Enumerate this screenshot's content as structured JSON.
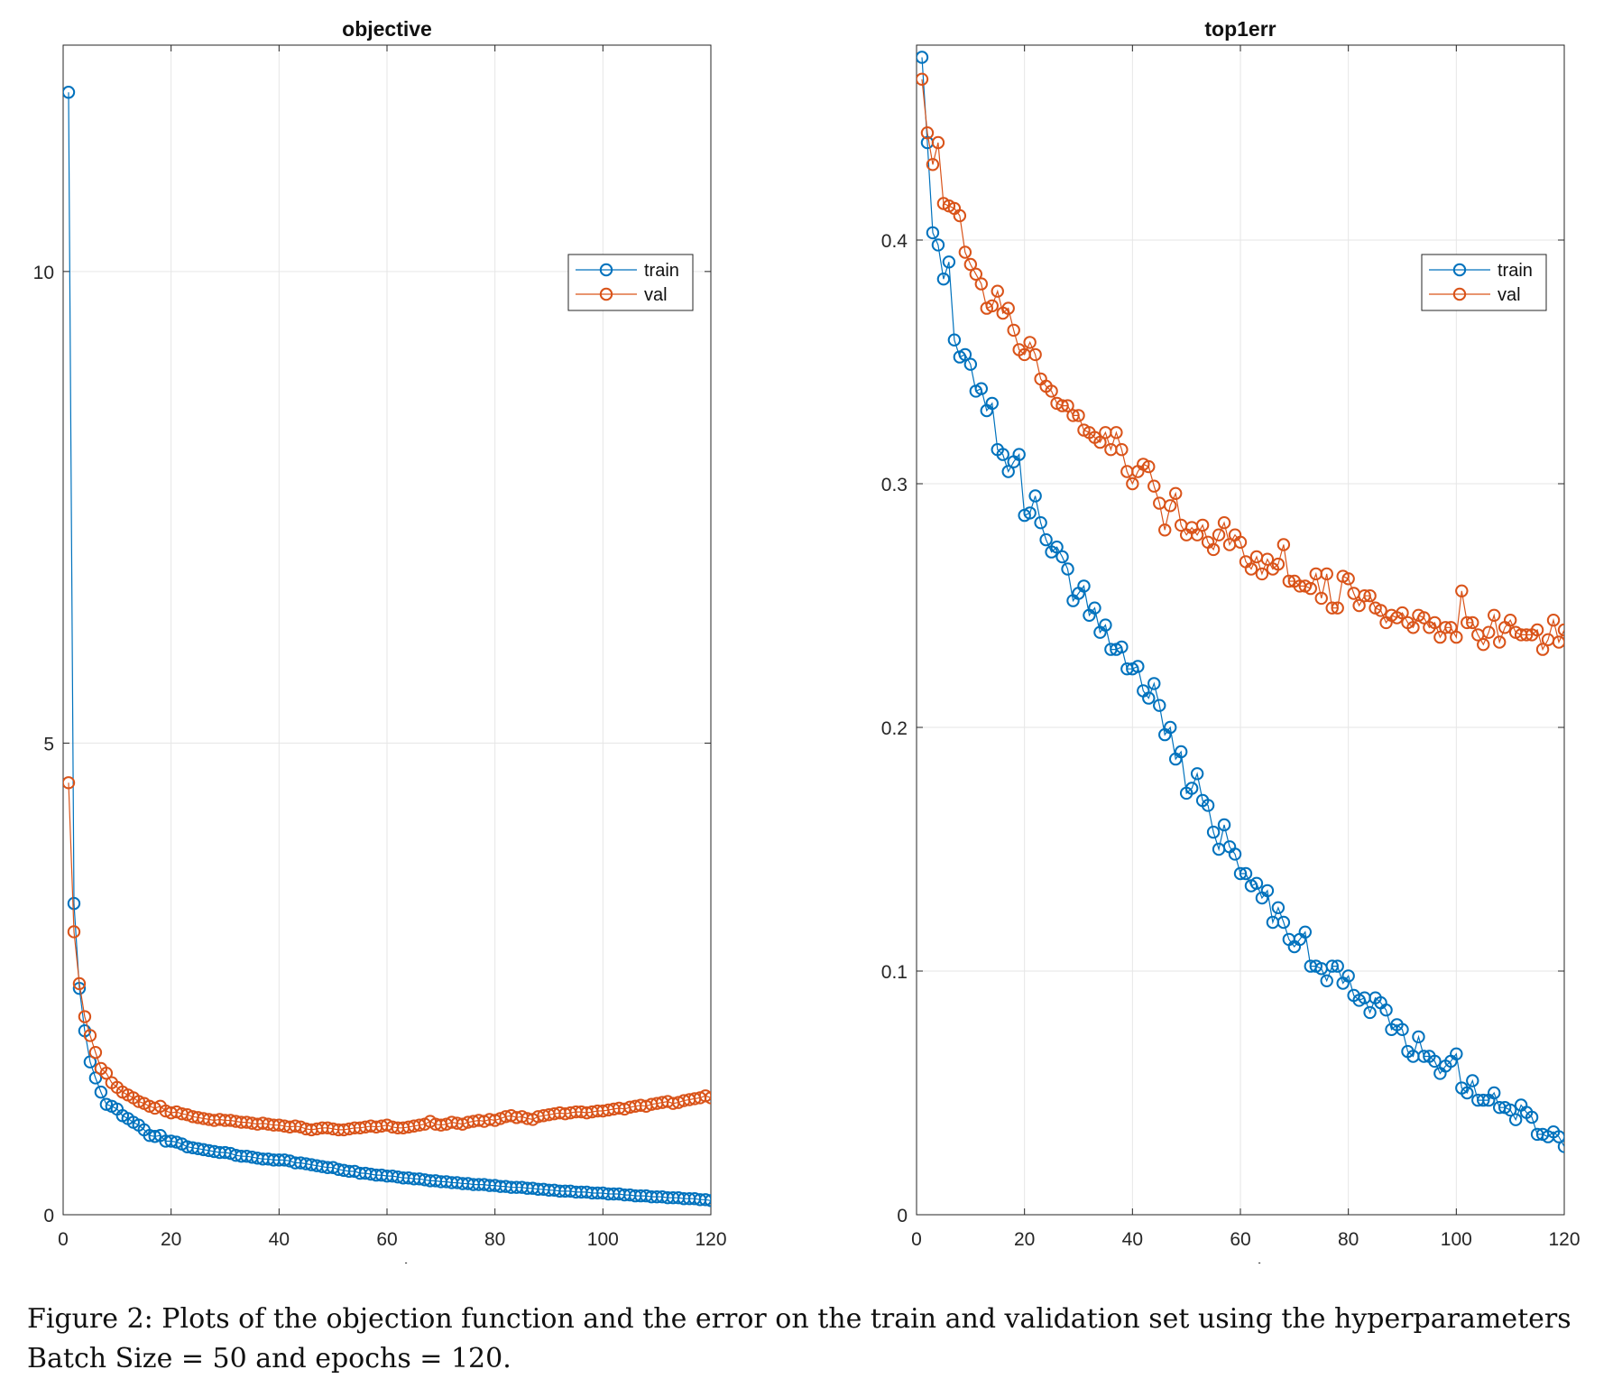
{
  "colors": {
    "train": "#0072BD",
    "val": "#D95319",
    "grid": "#e6e6e6",
    "axis": "#262626"
  },
  "caption": {
    "line1": "Figure 2:  Plots of the objection function and the error on the train and validation set using the hyperparameters",
    "line2": "Batch Size = 50 and epochs = 120."
  },
  "chart_data": [
    {
      "type": "line",
      "title": "objective",
      "xlabel": "epoch",
      "ylabel": "",
      "xlim": [
        0,
        120
      ],
      "ylim": [
        0,
        12.4
      ],
      "xticks": [
        0,
        20,
        40,
        60,
        80,
        100,
        120
      ],
      "xtick_labels": [
        "0",
        "20",
        "40",
        "60",
        "80",
        "100",
        "120"
      ],
      "yticks": [
        0,
        5,
        10
      ],
      "ytick_labels": [
        "0",
        "5",
        "10"
      ],
      "grid": true,
      "marker": "circle",
      "legend_position": "top-right",
      "legend_labels": [
        "train",
        "val"
      ],
      "series": [
        {
          "name": "train",
          "x": [
            1,
            2,
            3,
            4,
            5,
            6,
            7,
            8,
            9,
            10,
            11,
            12,
            13,
            14,
            15,
            16,
            17,
            18,
            19,
            20,
            21,
            22,
            23,
            24,
            25,
            26,
            27,
            28,
            29,
            30,
            31,
            32,
            33,
            34,
            35,
            36,
            37,
            38,
            39,
            40,
            41,
            42,
            43,
            44,
            45,
            46,
            47,
            48,
            49,
            50,
            51,
            52,
            53,
            54,
            55,
            56,
            57,
            58,
            59,
            60,
            61,
            62,
            63,
            64,
            65,
            66,
            67,
            68,
            69,
            70,
            71,
            72,
            73,
            74,
            75,
            76,
            77,
            78,
            79,
            80,
            81,
            82,
            83,
            84,
            85,
            86,
            87,
            88,
            89,
            90,
            91,
            92,
            93,
            94,
            95,
            96,
            97,
            98,
            99,
            100,
            101,
            102,
            103,
            104,
            105,
            106,
            107,
            108,
            109,
            110,
            111,
            112,
            113,
            114,
            115,
            116,
            117,
            118,
            119,
            120
          ],
          "values": [
            11.9,
            3.3,
            2.4,
            1.95,
            1.62,
            1.45,
            1.3,
            1.17,
            1.15,
            1.12,
            1.05,
            1.02,
            0.98,
            0.95,
            0.9,
            0.84,
            0.83,
            0.84,
            0.78,
            0.78,
            0.77,
            0.75,
            0.72,
            0.71,
            0.7,
            0.69,
            0.68,
            0.67,
            0.66,
            0.66,
            0.65,
            0.63,
            0.62,
            0.62,
            0.61,
            0.6,
            0.59,
            0.59,
            0.58,
            0.58,
            0.58,
            0.57,
            0.55,
            0.55,
            0.54,
            0.53,
            0.52,
            0.51,
            0.5,
            0.5,
            0.48,
            0.47,
            0.46,
            0.46,
            0.44,
            0.44,
            0.43,
            0.42,
            0.42,
            0.41,
            0.41,
            0.4,
            0.39,
            0.39,
            0.38,
            0.38,
            0.37,
            0.36,
            0.36,
            0.35,
            0.35,
            0.34,
            0.34,
            0.33,
            0.33,
            0.32,
            0.32,
            0.32,
            0.31,
            0.31,
            0.3,
            0.3,
            0.29,
            0.29,
            0.29,
            0.28,
            0.28,
            0.27,
            0.27,
            0.26,
            0.26,
            0.25,
            0.25,
            0.25,
            0.24,
            0.24,
            0.24,
            0.23,
            0.23,
            0.23,
            0.22,
            0.22,
            0.22,
            0.21,
            0.21,
            0.2,
            0.2,
            0.2,
            0.19,
            0.19,
            0.19,
            0.18,
            0.18,
            0.18,
            0.17,
            0.17,
            0.17,
            0.16,
            0.16,
            0.15
          ]
        },
        {
          "name": "val",
          "x": [
            1,
            2,
            3,
            4,
            5,
            6,
            7,
            8,
            9,
            10,
            11,
            12,
            13,
            14,
            15,
            16,
            17,
            18,
            19,
            20,
            21,
            22,
            23,
            24,
            25,
            26,
            27,
            28,
            29,
            30,
            31,
            32,
            33,
            34,
            35,
            36,
            37,
            38,
            39,
            40,
            41,
            42,
            43,
            44,
            45,
            46,
            47,
            48,
            49,
            50,
            51,
            52,
            53,
            54,
            55,
            56,
            57,
            58,
            59,
            60,
            61,
            62,
            63,
            64,
            65,
            66,
            67,
            68,
            69,
            70,
            71,
            72,
            73,
            74,
            75,
            76,
            77,
            78,
            79,
            80,
            81,
            82,
            83,
            84,
            85,
            86,
            87,
            88,
            89,
            90,
            91,
            92,
            93,
            94,
            95,
            96,
            97,
            98,
            99,
            100,
            101,
            102,
            103,
            104,
            105,
            106,
            107,
            108,
            109,
            110,
            111,
            112,
            113,
            114,
            115,
            116,
            117,
            118,
            119,
            120
          ],
          "values": [
            4.58,
            3.0,
            2.45,
            2.1,
            1.9,
            1.72,
            1.55,
            1.5,
            1.4,
            1.35,
            1.3,
            1.27,
            1.24,
            1.2,
            1.18,
            1.15,
            1.13,
            1.15,
            1.1,
            1.08,
            1.09,
            1.07,
            1.06,
            1.04,
            1.03,
            1.02,
            1.01,
            1.0,
            1.01,
            1.0,
            1.0,
            0.99,
            0.98,
            0.98,
            0.97,
            0.96,
            0.97,
            0.96,
            0.95,
            0.95,
            0.94,
            0.93,
            0.94,
            0.93,
            0.91,
            0.9,
            0.91,
            0.92,
            0.92,
            0.91,
            0.9,
            0.9,
            0.91,
            0.92,
            0.92,
            0.93,
            0.94,
            0.93,
            0.94,
            0.95,
            0.93,
            0.92,
            0.92,
            0.93,
            0.94,
            0.95,
            0.96,
            0.99,
            0.96,
            0.95,
            0.96,
            0.98,
            0.97,
            0.96,
            0.98,
            0.99,
            1.0,
            0.99,
            1.01,
            1.0,
            1.02,
            1.04,
            1.05,
            1.03,
            1.04,
            1.02,
            1.01,
            1.04,
            1.05,
            1.06,
            1.07,
            1.08,
            1.07,
            1.08,
            1.09,
            1.09,
            1.08,
            1.09,
            1.1,
            1.1,
            1.11,
            1.12,
            1.13,
            1.12,
            1.14,
            1.15,
            1.16,
            1.15,
            1.17,
            1.18,
            1.19,
            1.2,
            1.18,
            1.19,
            1.21,
            1.22,
            1.23,
            1.24,
            1.26,
            1.24
          ]
        }
      ]
    },
    {
      "type": "line",
      "title": "top1err",
      "xlabel": "epoch",
      "ylabel": "",
      "xlim": [
        0,
        120
      ],
      "ylim": [
        0,
        0.48
      ],
      "xticks": [
        0,
        20,
        40,
        60,
        80,
        100,
        120
      ],
      "xtick_labels": [
        "0",
        "20",
        "40",
        "60",
        "80",
        "100",
        "120"
      ],
      "yticks": [
        0,
        0.1,
        0.2,
        0.3,
        0.4
      ],
      "ytick_labels": [
        "0",
        "0.1",
        "0.2",
        "0.3",
        "0.4"
      ],
      "grid": true,
      "marker": "circle",
      "legend_position": "top-right",
      "legend_labels": [
        "train",
        "val"
      ],
      "series": [
        {
          "name": "train",
          "x": [
            1,
            2,
            3,
            4,
            5,
            6,
            7,
            8,
            9,
            10,
            11,
            12,
            13,
            14,
            15,
            16,
            17,
            18,
            19,
            20,
            21,
            22,
            23,
            24,
            25,
            26,
            27,
            28,
            29,
            30,
            31,
            32,
            33,
            34,
            35,
            36,
            37,
            38,
            39,
            40,
            41,
            42,
            43,
            44,
            45,
            46,
            47,
            48,
            49,
            50,
            51,
            52,
            53,
            54,
            55,
            56,
            57,
            58,
            59,
            60,
            61,
            62,
            63,
            64,
            65,
            66,
            67,
            68,
            69,
            70,
            71,
            72,
            73,
            74,
            75,
            76,
            77,
            78,
            79,
            80,
            81,
            82,
            83,
            84,
            85,
            86,
            87,
            88,
            89,
            90,
            91,
            92,
            93,
            94,
            95,
            96,
            97,
            98,
            99,
            100,
            101,
            102,
            103,
            104,
            105,
            106,
            107,
            108,
            109,
            110,
            111,
            112,
            113,
            114,
            115,
            116,
            117,
            118,
            119,
            120
          ],
          "values": [
            0.475,
            0.44,
            0.403,
            0.398,
            0.384,
            0.391,
            0.359,
            0.352,
            0.353,
            0.349,
            0.338,
            0.339,
            0.33,
            0.333,
            0.314,
            0.312,
            0.305,
            0.309,
            0.312,
            0.287,
            0.288,
            0.295,
            0.284,
            0.277,
            0.272,
            0.274,
            0.27,
            0.265,
            0.252,
            0.255,
            0.258,
            0.246,
            0.249,
            0.239,
            0.242,
            0.232,
            0.232,
            0.233,
            0.224,
            0.224,
            0.225,
            0.215,
            0.212,
            0.218,
            0.209,
            0.197,
            0.2,
            0.187,
            0.19,
            0.173,
            0.175,
            0.181,
            0.17,
            0.168,
            0.157,
            0.15,
            0.16,
            0.151,
            0.148,
            0.14,
            0.14,
            0.135,
            0.136,
            0.13,
            0.133,
            0.12,
            0.126,
            0.12,
            0.113,
            0.11,
            0.113,
            0.116,
            0.102,
            0.102,
            0.101,
            0.096,
            0.102,
            0.102,
            0.095,
            0.098,
            0.09,
            0.088,
            0.089,
            0.083,
            0.089,
            0.087,
            0.084,
            0.076,
            0.078,
            0.076,
            0.067,
            0.065,
            0.073,
            0.065,
            0.065,
            0.063,
            0.058,
            0.061,
            0.063,
            0.066,
            0.052,
            0.05,
            0.055,
            0.047,
            0.047,
            0.047,
            0.05,
            0.044,
            0.044,
            0.043,
            0.039,
            0.045,
            0.042,
            0.04,
            0.033,
            0.033,
            0.032,
            0.034,
            0.032,
            0.028
          ]
        },
        {
          "name": "val",
          "x": [
            1,
            2,
            3,
            4,
            5,
            6,
            7,
            8,
            9,
            10,
            11,
            12,
            13,
            14,
            15,
            16,
            17,
            18,
            19,
            20,
            21,
            22,
            23,
            24,
            25,
            26,
            27,
            28,
            29,
            30,
            31,
            32,
            33,
            34,
            35,
            36,
            37,
            38,
            39,
            40,
            41,
            42,
            43,
            44,
            45,
            46,
            47,
            48,
            49,
            50,
            51,
            52,
            53,
            54,
            55,
            56,
            57,
            58,
            59,
            60,
            61,
            62,
            63,
            64,
            65,
            66,
            67,
            68,
            69,
            70,
            71,
            72,
            73,
            74,
            75,
            76,
            77,
            78,
            79,
            80,
            81,
            82,
            83,
            84,
            85,
            86,
            87,
            88,
            89,
            90,
            91,
            92,
            93,
            94,
            95,
            96,
            97,
            98,
            99,
            100,
            101,
            102,
            103,
            104,
            105,
            106,
            107,
            108,
            109,
            110,
            111,
            112,
            113,
            114,
            115,
            116,
            117,
            118,
            119,
            120
          ],
          "values": [
            0.466,
            0.444,
            0.431,
            0.44,
            0.415,
            0.414,
            0.413,
            0.41,
            0.395,
            0.39,
            0.386,
            0.382,
            0.372,
            0.373,
            0.379,
            0.37,
            0.372,
            0.363,
            0.355,
            0.353,
            0.358,
            0.353,
            0.343,
            0.34,
            0.338,
            0.333,
            0.332,
            0.332,
            0.328,
            0.328,
            0.322,
            0.321,
            0.319,
            0.317,
            0.321,
            0.314,
            0.321,
            0.314,
            0.305,
            0.3,
            0.305,
            0.308,
            0.307,
            0.299,
            0.292,
            0.281,
            0.291,
            0.296,
            0.283,
            0.279,
            0.282,
            0.279,
            0.283,
            0.276,
            0.273,
            0.279,
            0.284,
            0.275,
            0.279,
            0.276,
            0.268,
            0.265,
            0.27,
            0.263,
            0.269,
            0.265,
            0.267,
            0.275,
            0.26,
            0.26,
            0.258,
            0.258,
            0.257,
            0.263,
            0.253,
            0.263,
            0.249,
            0.249,
            0.262,
            0.261,
            0.255,
            0.25,
            0.254,
            0.254,
            0.249,
            0.248,
            0.243,
            0.246,
            0.245,
            0.247,
            0.243,
            0.241,
            0.246,
            0.245,
            0.241,
            0.243,
            0.237,
            0.241,
            0.241,
            0.237,
            0.256,
            0.243,
            0.243,
            0.238,
            0.234,
            0.239,
            0.246,
            0.235,
            0.241,
            0.244,
            0.239,
            0.238,
            0.238,
            0.238,
            0.24,
            0.232,
            0.236,
            0.244,
            0.235,
            0.24
          ]
        }
      ]
    }
  ]
}
